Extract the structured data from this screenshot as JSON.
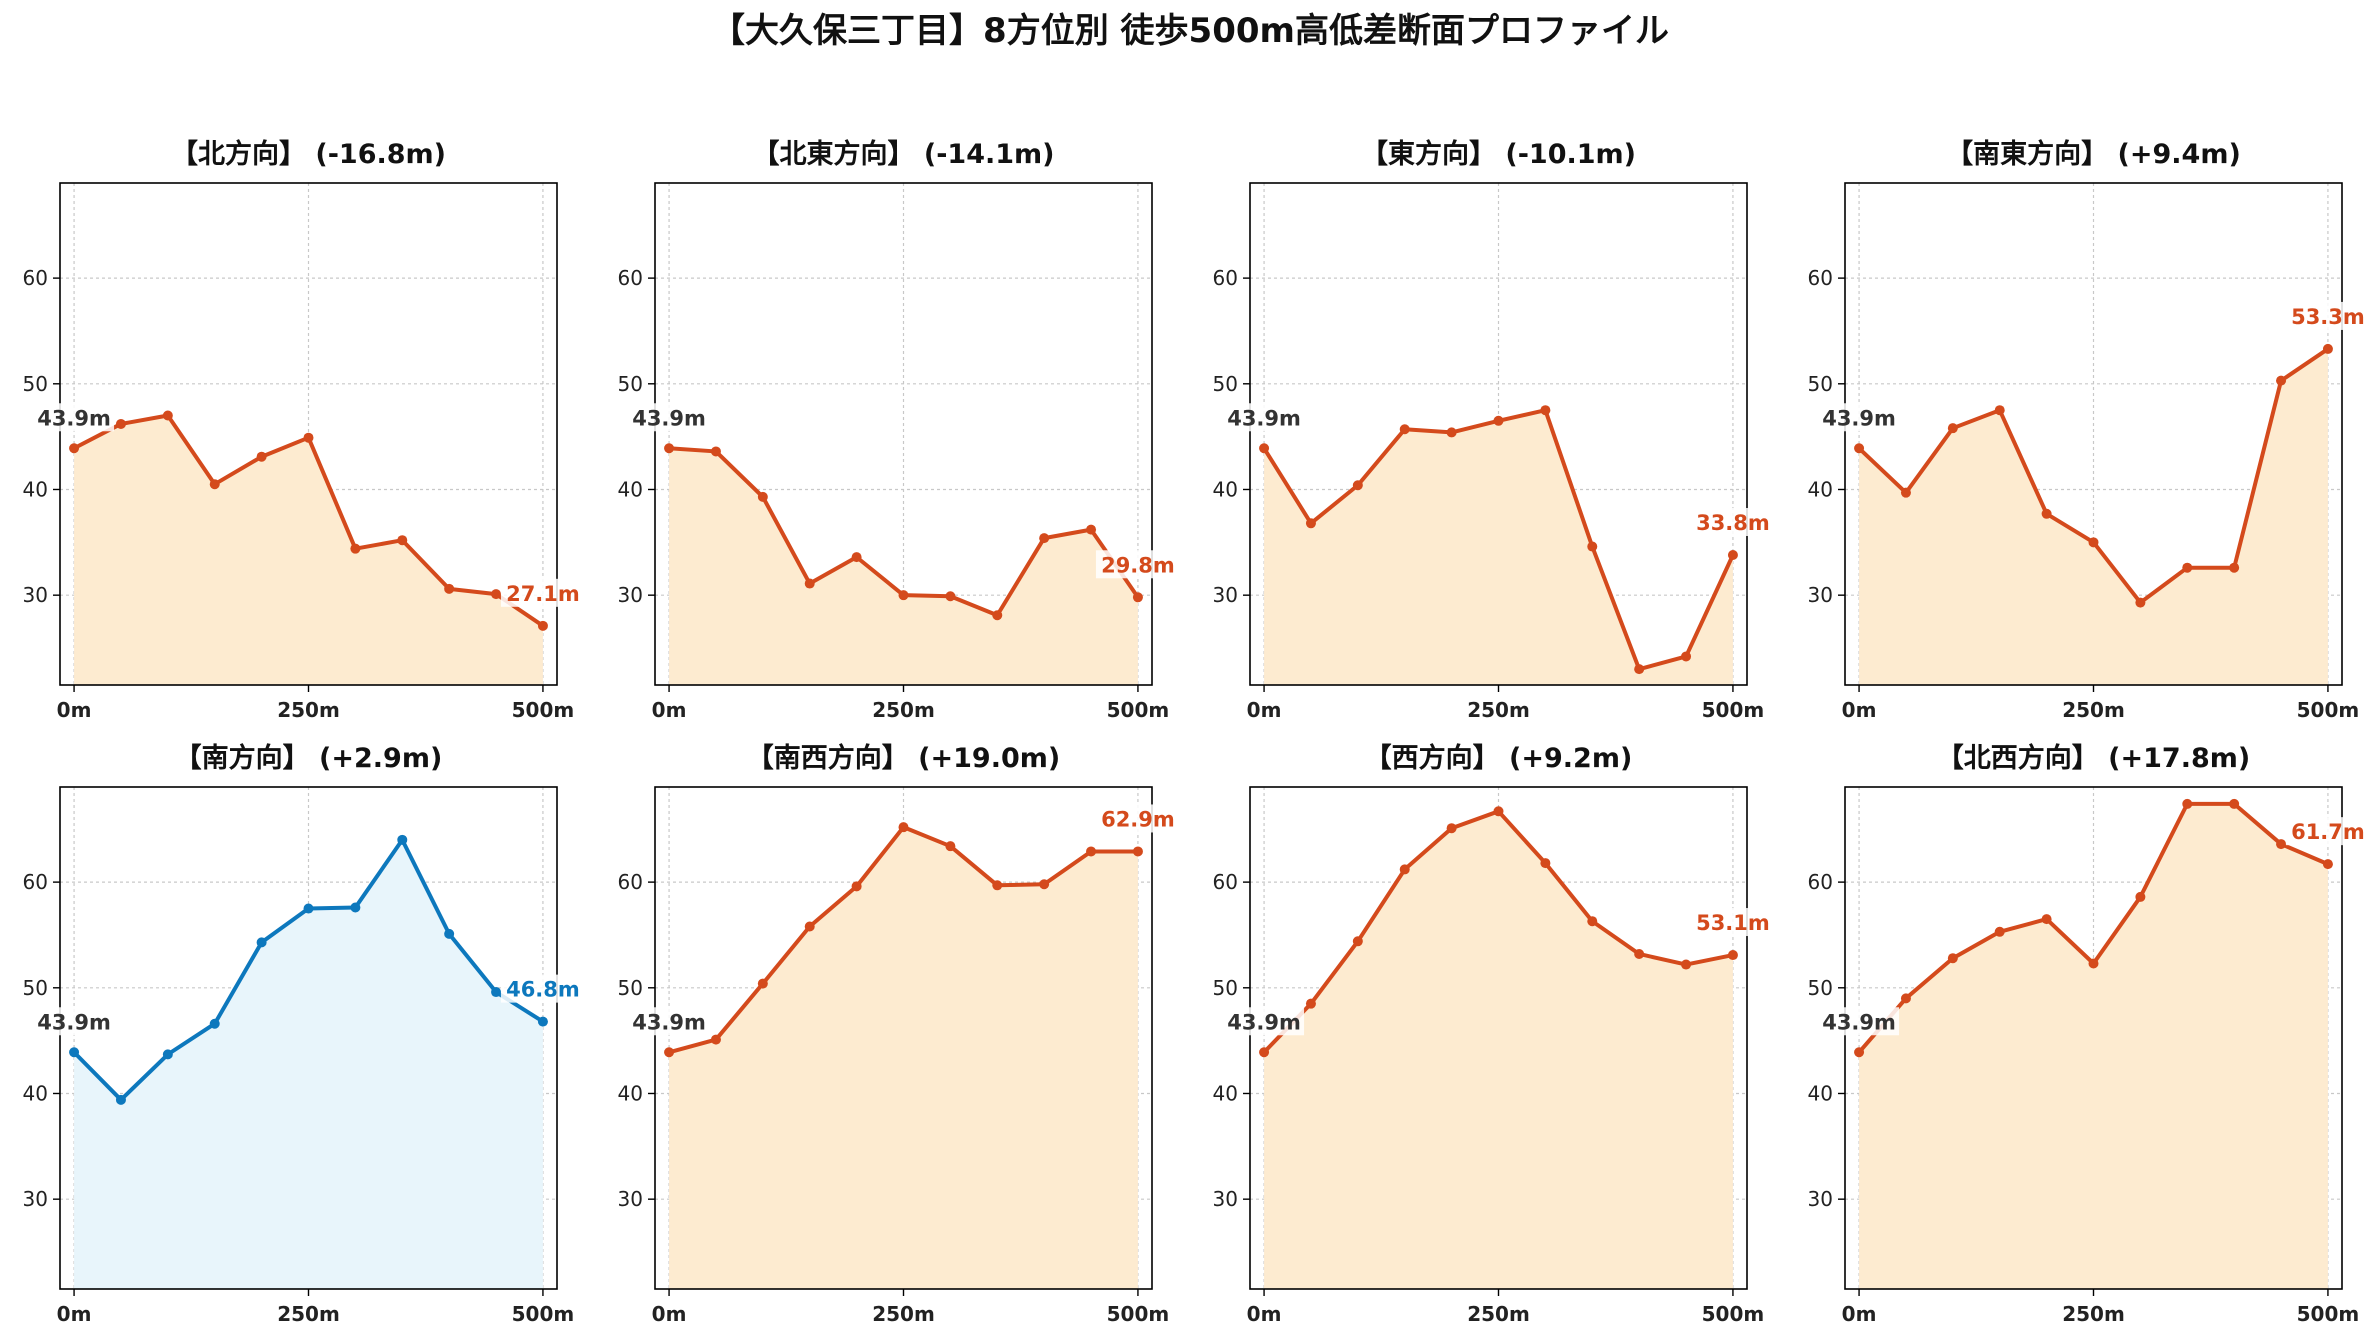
{
  "figure_title": "【大久保三丁目】8方位別 徒歩500m高低差断面プロファイル",
  "colors": {
    "down_line": "#d44a1c",
    "down_fill": "#fdebd0",
    "up_line": "#0d78bd",
    "up_fill": "#e8f5fb",
    "start_label": "#333333",
    "grid": "#c8c8c8"
  },
  "chart_data": [
    {
      "type": "area",
      "title": "【北方向】 (-16.8m)",
      "x": [
        0,
        50,
        100,
        150,
        200,
        250,
        300,
        350,
        400,
        450,
        500
      ],
      "y": [
        43.9,
        46.2,
        47.0,
        40.5,
        43.1,
        44.9,
        34.4,
        35.2,
        30.6,
        30.1,
        27.1
      ],
      "xticks": [
        "0m",
        "250m",
        "500m"
      ],
      "yticks": [
        "30",
        "40",
        "50",
        "60"
      ],
      "xlim": [
        -15,
        515
      ],
      "ylim": [
        21.5,
        69
      ],
      "start_label": "43.9m",
      "end_label": "27.1m",
      "style": "down",
      "grid": true
    },
    {
      "type": "area",
      "title": "【北東方向】 (-14.1m)",
      "x": [
        0,
        50,
        100,
        150,
        200,
        250,
        300,
        350,
        400,
        450,
        500
      ],
      "y": [
        43.9,
        43.6,
        39.3,
        31.1,
        33.6,
        30.0,
        29.9,
        28.1,
        35.4,
        36.2,
        29.8
      ],
      "xticks": [
        "0m",
        "250m",
        "500m"
      ],
      "yticks": [
        "30",
        "40",
        "50",
        "60"
      ],
      "xlim": [
        -15,
        515
      ],
      "ylim": [
        21.5,
        69
      ],
      "start_label": "43.9m",
      "end_label": "29.8m",
      "style": "down",
      "grid": true
    },
    {
      "type": "area",
      "title": "【東方向】 (-10.1m)",
      "x": [
        0,
        50,
        100,
        150,
        200,
        250,
        300,
        350,
        400,
        450,
        500
      ],
      "y": [
        43.9,
        36.8,
        40.4,
        45.7,
        45.4,
        46.5,
        47.5,
        34.6,
        23.0,
        24.2,
        33.8
      ],
      "xticks": [
        "0m",
        "250m",
        "500m"
      ],
      "yticks": [
        "30",
        "40",
        "50",
        "60"
      ],
      "xlim": [
        -15,
        515
      ],
      "ylim": [
        21.5,
        69
      ],
      "start_label": "43.9m",
      "end_label": "33.8m",
      "style": "down",
      "grid": true
    },
    {
      "type": "area",
      "title": "【南東方向】 (+9.4m)",
      "x": [
        0,
        50,
        100,
        150,
        200,
        250,
        300,
        350,
        400,
        450,
        500
      ],
      "y": [
        43.9,
        39.7,
        45.8,
        47.5,
        37.7,
        35.0,
        29.3,
        32.6,
        32.6,
        50.3,
        53.3
      ],
      "xticks": [
        "0m",
        "250m",
        "500m"
      ],
      "yticks": [
        "30",
        "40",
        "50",
        "60"
      ],
      "xlim": [
        -15,
        515
      ],
      "ylim": [
        21.5,
        69
      ],
      "start_label": "43.9m",
      "end_label": "53.3m",
      "style": "down",
      "grid": true
    },
    {
      "type": "area",
      "title": "【南方向】 (+2.9m)",
      "x": [
        0,
        50,
        100,
        150,
        200,
        250,
        300,
        350,
        400,
        450,
        500
      ],
      "y": [
        43.9,
        39.4,
        43.7,
        46.6,
        54.3,
        57.5,
        57.6,
        64.0,
        55.1,
        49.6,
        46.8
      ],
      "xticks": [
        "0m",
        "250m",
        "500m"
      ],
      "yticks": [
        "30",
        "40",
        "50",
        "60"
      ],
      "xlim": [
        -15,
        515
      ],
      "ylim": [
        21.5,
        69
      ],
      "start_label": "43.9m",
      "end_label": "46.8m",
      "style": "up",
      "grid": true
    },
    {
      "type": "area",
      "title": "【南西方向】 (+19.0m)",
      "x": [
        0,
        50,
        100,
        150,
        200,
        250,
        300,
        350,
        400,
        450,
        500
      ],
      "y": [
        43.9,
        45.1,
        50.4,
        55.8,
        59.6,
        65.2,
        63.4,
        59.7,
        59.8,
        62.9,
        62.9
      ],
      "xticks": [
        "0m",
        "250m",
        "500m"
      ],
      "yticks": [
        "30",
        "40",
        "50",
        "60"
      ],
      "xlim": [
        -15,
        515
      ],
      "ylim": [
        21.5,
        69
      ],
      "start_label": "43.9m",
      "end_label": "62.9m",
      "style": "down",
      "grid": true
    },
    {
      "type": "area",
      "title": "【西方向】 (+9.2m)",
      "x": [
        0,
        50,
        100,
        150,
        200,
        250,
        300,
        350,
        400,
        450,
        500
      ],
      "y": [
        43.9,
        48.5,
        54.4,
        61.2,
        65.1,
        66.7,
        61.8,
        56.3,
        53.2,
        52.2,
        53.1
      ],
      "xticks": [
        "0m",
        "250m",
        "500m"
      ],
      "yticks": [
        "30",
        "40",
        "50",
        "60"
      ],
      "xlim": [
        -15,
        515
      ],
      "ylim": [
        21.5,
        69
      ],
      "start_label": "43.9m",
      "end_label": "53.1m",
      "style": "down",
      "grid": true
    },
    {
      "type": "area",
      "title": "【北西方向】 (+17.8m)",
      "x": [
        0,
        50,
        100,
        150,
        200,
        250,
        300,
        350,
        400,
        450,
        500
      ],
      "y": [
        43.9,
        49.0,
        52.8,
        55.3,
        56.5,
        52.3,
        58.6,
        67.4,
        67.4,
        63.6,
        61.7
      ],
      "xticks": [
        "0m",
        "250m",
        "500m"
      ],
      "yticks": [
        "30",
        "40",
        "50",
        "60"
      ],
      "xlim": [
        -15,
        515
      ],
      "ylim": [
        21.5,
        69
      ],
      "start_label": "43.9m",
      "end_label": "61.7m",
      "style": "down",
      "grid": true
    }
  ]
}
